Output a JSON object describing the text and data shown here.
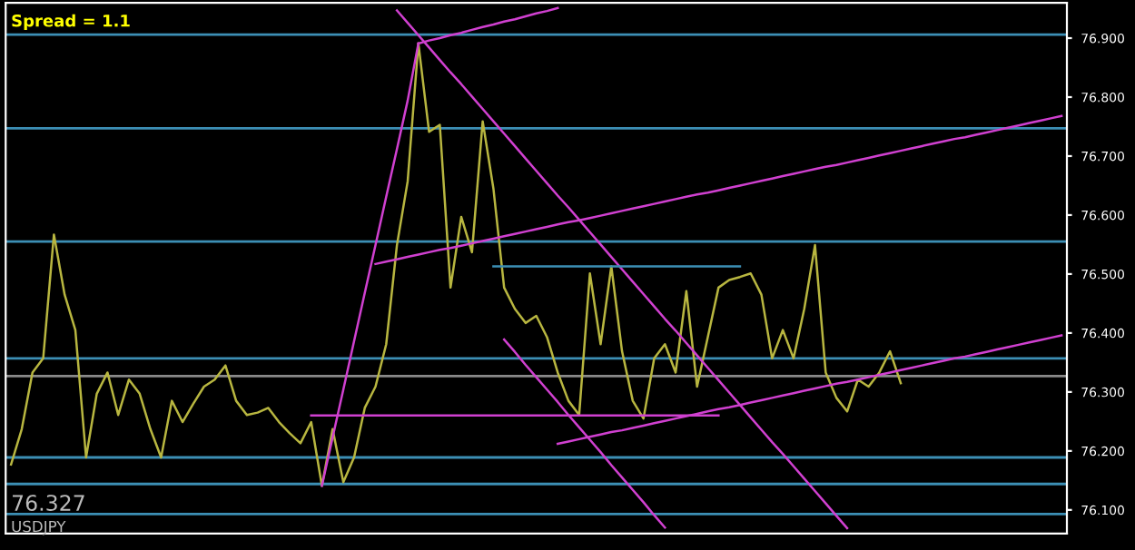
{
  "chart_data": {
    "type": "line",
    "annotations": [
      "Spread = 1.1",
      "76.327",
      "USDJPY"
    ],
    "categories": [
      null,
      null,
      null,
      null,
      null,
      null,
      null,
      null,
      null,
      null,
      null,
      null,
      null,
      null,
      null,
      null,
      null,
      null,
      null,
      null,
      null,
      null,
      null,
      null,
      null,
      null,
      null,
      null,
      null,
      null,
      null,
      null,
      null,
      null,
      null,
      null,
      null,
      null,
      null,
      null,
      null,
      null,
      null,
      null,
      null,
      null,
      null,
      null,
      null,
      null,
      null,
      null,
      null,
      null,
      null,
      null,
      null,
      null,
      null,
      null,
      null,
      null,
      null,
      null,
      null,
      null,
      null,
      null,
      null,
      null,
      null,
      null,
      null,
      null,
      null,
      null,
      null,
      null,
      null,
      null,
      null,
      null,
      null,
      null,
      null,
      null,
      null,
      null,
      null,
      null,
      null,
      null,
      null,
      null,
      null,
      null,
      null,
      null,
      null
    ],
    "ylim": [
      76.06,
      76.96
    ],
    "yticks": [
      {
        "value": 76.1,
        "label": "76.100"
      },
      {
        "value": 76.2,
        "label": "76.200"
      },
      {
        "value": 76.3,
        "label": "76.300"
      },
      {
        "value": 76.4,
        "label": "76.400"
      },
      {
        "value": 76.5,
        "label": "76.500"
      },
      {
        "value": 76.6,
        "label": "76.600"
      },
      {
        "value": 76.7,
        "label": "76.700"
      },
      {
        "value": 76.8,
        "label": "76.800"
      },
      {
        "value": 76.9,
        "label": "76.900"
      }
    ],
    "tick_labels": "y",
    "legend": false,
    "marker": "none",
    "line_style": "solid",
    "ref_lines": [
      {
        "axis": "y",
        "value": 76.906,
        "color": "#3c8fb5"
      },
      {
        "axis": "y",
        "value": 76.747,
        "color": "#3c8fb5"
      },
      {
        "axis": "y",
        "value": 76.555,
        "color": "#3c8fb5"
      },
      {
        "axis": "y",
        "value": 76.357,
        "color": "#3c8fb5"
      },
      {
        "axis": "y",
        "value": 76.189,
        "color": "#3c8fb5"
      },
      {
        "axis": "y",
        "value": 76.144,
        "color": "#3c8fb5"
      },
      {
        "axis": "y",
        "value": 76.093,
        "color": "#3c8fb5"
      },
      {
        "axis": "y",
        "value": 76.327,
        "color": "#8a8a8a"
      }
    ],
    "series": [
      {
        "color": "#b8b640",
        "values": [
          76.177,
          76.237,
          76.333,
          76.357,
          76.567,
          76.465,
          76.405,
          76.189,
          76.297,
          76.333,
          76.261,
          76.321,
          76.297,
          76.237,
          76.189,
          76.285,
          76.249,
          76.28,
          76.309,
          76.321,
          76.345,
          76.285,
          76.261,
          76.265,
          76.273,
          76.249,
          76.23,
          76.213,
          76.249,
          76.141,
          76.237,
          76.147,
          76.189,
          76.273,
          76.309,
          76.381,
          76.549,
          76.657,
          76.891,
          76.741,
          76.753,
          76.477,
          76.597,
          76.537,
          76.759,
          76.645,
          76.477,
          76.441,
          76.417,
          76.429,
          76.393,
          76.333,
          76.285,
          76.261,
          76.501,
          76.381,
          76.513,
          76.369,
          76.285,
          76.255,
          76.357,
          76.381,
          76.333,
          76.471,
          76.309,
          76.393,
          76.477,
          76.49,
          76.495,
          76.501,
          76.465,
          76.357,
          76.405,
          76.357,
          76.441,
          76.549,
          76.333,
          76.29,
          76.267,
          76.321,
          76.309,
          76.333,
          76.369,
          76.315,
          null,
          null,
          null,
          null,
          null,
          null,
          null,
          null,
          null,
          null,
          null,
          null,
          null,
          null,
          null
        ]
      },
      {
        "color": "#d040d0",
        "values": [
          null,
          null,
          null,
          null,
          null,
          null,
          null,
          null,
          null,
          null,
          null,
          null,
          null,
          null,
          null,
          null,
          null,
          null,
          null,
          null,
          null,
          null,
          null,
          null,
          null,
          null,
          null,
          null,
          null,
          76.141,
          76.223,
          76.304,
          76.386,
          76.468,
          76.549,
          76.631,
          76.712,
          76.794,
          76.891,
          null,
          null,
          null,
          null,
          null,
          null,
          null,
          null,
          null,
          null,
          null,
          null,
          null,
          null,
          null,
          null,
          null,
          null,
          null,
          null,
          null,
          null,
          null,
          null,
          null,
          null,
          null,
          null,
          null,
          null,
          null,
          null,
          null,
          null,
          null,
          null,
          null,
          null,
          null,
          null,
          null,
          null,
          null,
          null,
          null,
          null,
          null,
          null,
          null,
          null,
          null,
          null,
          null,
          null,
          null,
          null,
          null,
          null,
          null,
          null
        ]
      },
      {
        "color": "#d040d0",
        "values": [
          null,
          null,
          null,
          null,
          null,
          null,
          null,
          null,
          null,
          null,
          null,
          null,
          null,
          null,
          null,
          null,
          null,
          null,
          null,
          null,
          null,
          null,
          null,
          null,
          null,
          null,
          null,
          null,
          null,
          null,
          null,
          null,
          null,
          null,
          null,
          null,
          null,
          null,
          76.891,
          76.896,
          76.9,
          76.905,
          76.909,
          76.914,
          76.919,
          76.923,
          76.928,
          76.932,
          76.937,
          76.942,
          76.946,
          76.951,
          null,
          null,
          null,
          null,
          null,
          null,
          null,
          null,
          null,
          null,
          null,
          null,
          null,
          null,
          null,
          null,
          null,
          null,
          null,
          null,
          null,
          null,
          null,
          null,
          null,
          null,
          null,
          null,
          null,
          null,
          null,
          null,
          null,
          null,
          null,
          null,
          null,
          null,
          null,
          null,
          null,
          null,
          null,
          null,
          null,
          null,
          null
        ]
      },
      {
        "color": "#d040d0",
        "values": [
          null,
          null,
          null,
          null,
          null,
          null,
          null,
          null,
          null,
          null,
          null,
          null,
          null,
          null,
          null,
          null,
          null,
          null,
          null,
          null,
          null,
          null,
          null,
          null,
          null,
          null,
          null,
          null,
          null,
          null,
          null,
          null,
          null,
          null,
          null,
          null,
          76.947,
          76.926,
          76.905,
          76.884,
          76.863,
          76.842,
          76.822,
          76.801,
          76.78,
          76.759,
          76.738,
          76.717,
          76.696,
          76.675,
          76.654,
          76.633,
          76.613,
          76.592,
          76.571,
          76.55,
          76.529,
          76.508,
          76.487,
          76.466,
          76.445,
          76.424,
          76.404,
          76.383,
          76.362,
          76.341,
          76.32,
          76.299,
          76.278,
          76.257,
          76.236,
          76.215,
          76.195,
          76.174,
          76.153,
          76.132,
          76.111,
          76.09,
          76.069,
          null,
          null,
          null,
          null,
          null,
          null,
          null,
          null,
          null,
          null,
          null,
          null,
          null,
          null,
          null,
          null,
          null,
          null,
          null,
          null
        ]
      },
      {
        "color": "#d040d0",
        "values": [
          null,
          null,
          null,
          null,
          null,
          null,
          null,
          null,
          null,
          null,
          null,
          null,
          null,
          null,
          null,
          null,
          null,
          null,
          null,
          null,
          null,
          null,
          null,
          null,
          null,
          null,
          null,
          null,
          null,
          null,
          null,
          null,
          null,
          null,
          76.517,
          76.521,
          76.525,
          76.529,
          76.533,
          76.537,
          76.541,
          76.544,
          76.548,
          76.552,
          76.556,
          76.56,
          76.564,
          76.568,
          76.572,
          76.576,
          76.58,
          76.584,
          76.588,
          76.591,
          76.595,
          76.599,
          76.603,
          76.607,
          76.611,
          76.615,
          76.619,
          76.623,
          76.627,
          76.631,
          76.635,
          76.638,
          76.642,
          76.646,
          76.65,
          76.654,
          76.658,
          76.662,
          76.666,
          76.67,
          76.674,
          76.678,
          76.682,
          76.685,
          76.689,
          76.693,
          76.697,
          76.701,
          76.705,
          76.709,
          76.713,
          76.717,
          76.721,
          76.725,
          76.729,
          76.732,
          76.736,
          76.74,
          76.744,
          76.748,
          76.752,
          76.756,
          76.76,
          76.764,
          76.768
        ]
      },
      {
        "color": "#d040d0",
        "values": [
          null,
          null,
          null,
          null,
          null,
          null,
          null,
          null,
          null,
          null,
          null,
          null,
          null,
          null,
          null,
          null,
          null,
          null,
          null,
          null,
          null,
          null,
          null,
          null,
          null,
          null,
          null,
          null,
          null,
          null,
          null,
          null,
          null,
          null,
          null,
          null,
          null,
          null,
          null,
          null,
          null,
          null,
          null,
          null,
          null,
          null,
          76.389,
          76.368,
          76.346,
          76.325,
          76.304,
          76.283,
          76.261,
          76.24,
          76.219,
          76.198,
          76.176,
          76.155,
          76.134,
          76.113,
          76.091,
          76.07,
          null,
          null,
          null,
          null,
          null,
          null,
          null,
          null,
          null,
          null,
          null,
          null,
          null,
          null,
          null,
          null,
          null,
          null,
          null,
          null,
          null,
          null,
          null,
          null,
          null,
          null,
          null,
          null,
          null,
          null,
          null,
          null,
          null,
          null,
          null,
          null,
          null
        ]
      },
      {
        "color": "#d040d0",
        "values": [
          null,
          null,
          null,
          null,
          null,
          null,
          null,
          null,
          null,
          null,
          null,
          null,
          null,
          null,
          null,
          null,
          null,
          null,
          null,
          null,
          null,
          null,
          null,
          null,
          null,
          null,
          null,
          null,
          null,
          null,
          null,
          null,
          null,
          null,
          null,
          null,
          null,
          null,
          null,
          null,
          null,
          null,
          null,
          null,
          null,
          null,
          null,
          null,
          null,
          null,
          null,
          76.212,
          76.216,
          76.22,
          76.224,
          76.228,
          76.232,
          76.235,
          76.239,
          76.243,
          76.247,
          76.251,
          76.255,
          76.259,
          76.263,
          76.267,
          76.271,
          76.274,
          76.278,
          76.282,
          76.286,
          76.29,
          76.294,
          76.298,
          76.302,
          76.306,
          76.31,
          76.314,
          76.317,
          76.321,
          76.325,
          76.329,
          76.333,
          76.337,
          76.341,
          76.345,
          76.349,
          76.353,
          76.357,
          76.36,
          76.364,
          76.368,
          76.372,
          76.376,
          76.38,
          76.384,
          76.388,
          76.392,
          76.396
        ]
      },
      {
        "color": "#d040d0",
        "values": [
          null,
          null,
          null,
          null,
          null,
          null,
          null,
          null,
          null,
          null,
          null,
          null,
          null,
          null,
          null,
          null,
          null,
          null,
          null,
          null,
          null,
          null,
          null,
          null,
          null,
          null,
          null,
          null,
          76.26,
          76.26,
          76.26,
          76.26,
          76.26,
          76.26,
          76.26,
          76.26,
          76.26,
          76.26,
          76.26,
          76.26,
          76.26,
          76.26,
          76.26,
          76.26,
          76.26,
          76.26,
          76.26,
          76.26,
          76.26,
          76.26,
          76.26,
          76.26,
          76.26,
          76.26,
          76.26,
          76.26,
          76.26,
          76.26,
          76.26,
          76.26,
          76.26,
          76.26,
          76.26,
          76.26,
          76.26,
          76.26,
          76.26,
          null,
          null,
          null,
          null,
          null,
          null,
          null,
          null,
          null,
          null,
          null,
          null,
          null,
          null,
          null,
          null,
          null,
          null,
          null,
          null,
          null,
          null,
          null,
          null,
          null,
          null,
          null,
          null,
          null,
          null,
          null,
          null
        ]
      },
      {
        "color": "#3c8fb5",
        "values": [
          null,
          null,
          null,
          null,
          null,
          null,
          null,
          null,
          null,
          null,
          null,
          null,
          null,
          null,
          null,
          null,
          null,
          null,
          null,
          null,
          null,
          null,
          null,
          null,
          null,
          null,
          null,
          null,
          null,
          null,
          null,
          null,
          null,
          null,
          null,
          null,
          null,
          null,
          null,
          null,
          null,
          null,
          null,
          null,
          null,
          76.513,
          76.513,
          76.513,
          76.513,
          76.513,
          76.513,
          76.513,
          76.513,
          76.513,
          76.513,
          76.513,
          76.513,
          76.513,
          76.513,
          76.513,
          76.513,
          76.513,
          76.513,
          76.513,
          76.513,
          76.513,
          76.513,
          76.513,
          76.513,
          null,
          null,
          null,
          null,
          null,
          null,
          null,
          null,
          null,
          null,
          null,
          null,
          null,
          null,
          null,
          null,
          null,
          null,
          null,
          null,
          null,
          null,
          null,
          null,
          null,
          null,
          null,
          null,
          null,
          null
        ]
      }
    ]
  }
}
